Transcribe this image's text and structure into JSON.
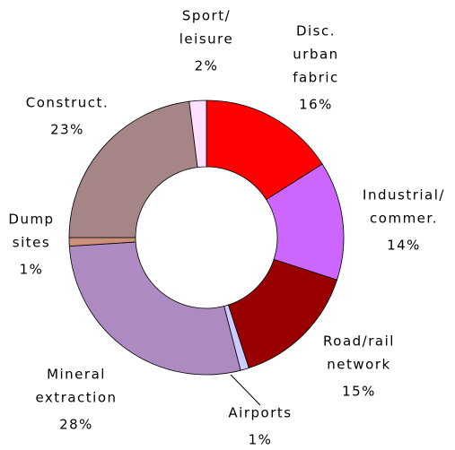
{
  "chart_data": {
    "type": "donut",
    "categories": [
      [
        "Disc.",
        "urban",
        "fabric"
      ],
      [
        "Industrial/",
        "commer."
      ],
      [
        "Road/rail",
        "network"
      ],
      [
        "Airports"
      ],
      [
        "Mineral",
        "extraction"
      ],
      [
        "Dump",
        "sites"
      ],
      [
        "Construct."
      ],
      [
        "Sport/",
        "leisure"
      ]
    ],
    "values": [
      16,
      14,
      15,
      1,
      28,
      1,
      23,
      2
    ],
    "value_labels": [
      "16%",
      "14%",
      "15%",
      "1%",
      "28%",
      "1%",
      "23%",
      "2%"
    ],
    "colors": [
      "#ff0000",
      "#cc66ff",
      "#990000",
      "#ccccff",
      "#ad8bc2",
      "#cc8f7a",
      "#a68587",
      "#ffe0ff"
    ]
  }
}
